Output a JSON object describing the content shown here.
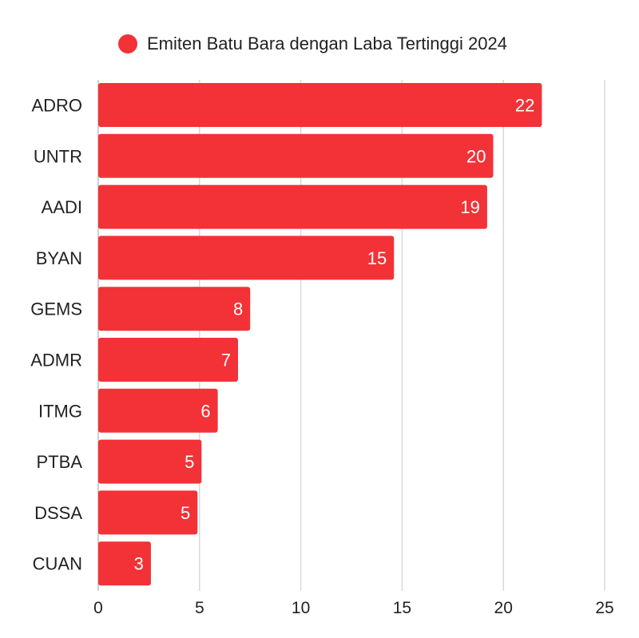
{
  "chart_data": {
    "type": "bar",
    "orientation": "horizontal",
    "legend": "Emiten Batu Bara dengan Laba Tertinggi 2024",
    "legend_position": "top",
    "categories": [
      "ADRO",
      "UNTR",
      "AADI",
      "BYAN",
      "GEMS",
      "ADMR",
      "ITMG",
      "PTBA",
      "DSSA",
      "CUAN"
    ],
    "values": [
      21.9,
      19.5,
      19.2,
      14.6,
      7.5,
      6.9,
      5.9,
      5.1,
      4.9,
      2.6
    ],
    "data_labels": [
      "22",
      "20",
      "19",
      "15",
      "8",
      "7",
      "6",
      "5",
      "5",
      "3"
    ],
    "xlim": [
      0,
      25
    ],
    "xticks": [
      0,
      5,
      10,
      15,
      20,
      25
    ],
    "xtick_labels": [
      "0",
      "5",
      "10",
      "15",
      "20",
      "25"
    ],
    "grid": "vertical",
    "bar_color": "#f23237",
    "grid_color": "#d9d9d9"
  }
}
